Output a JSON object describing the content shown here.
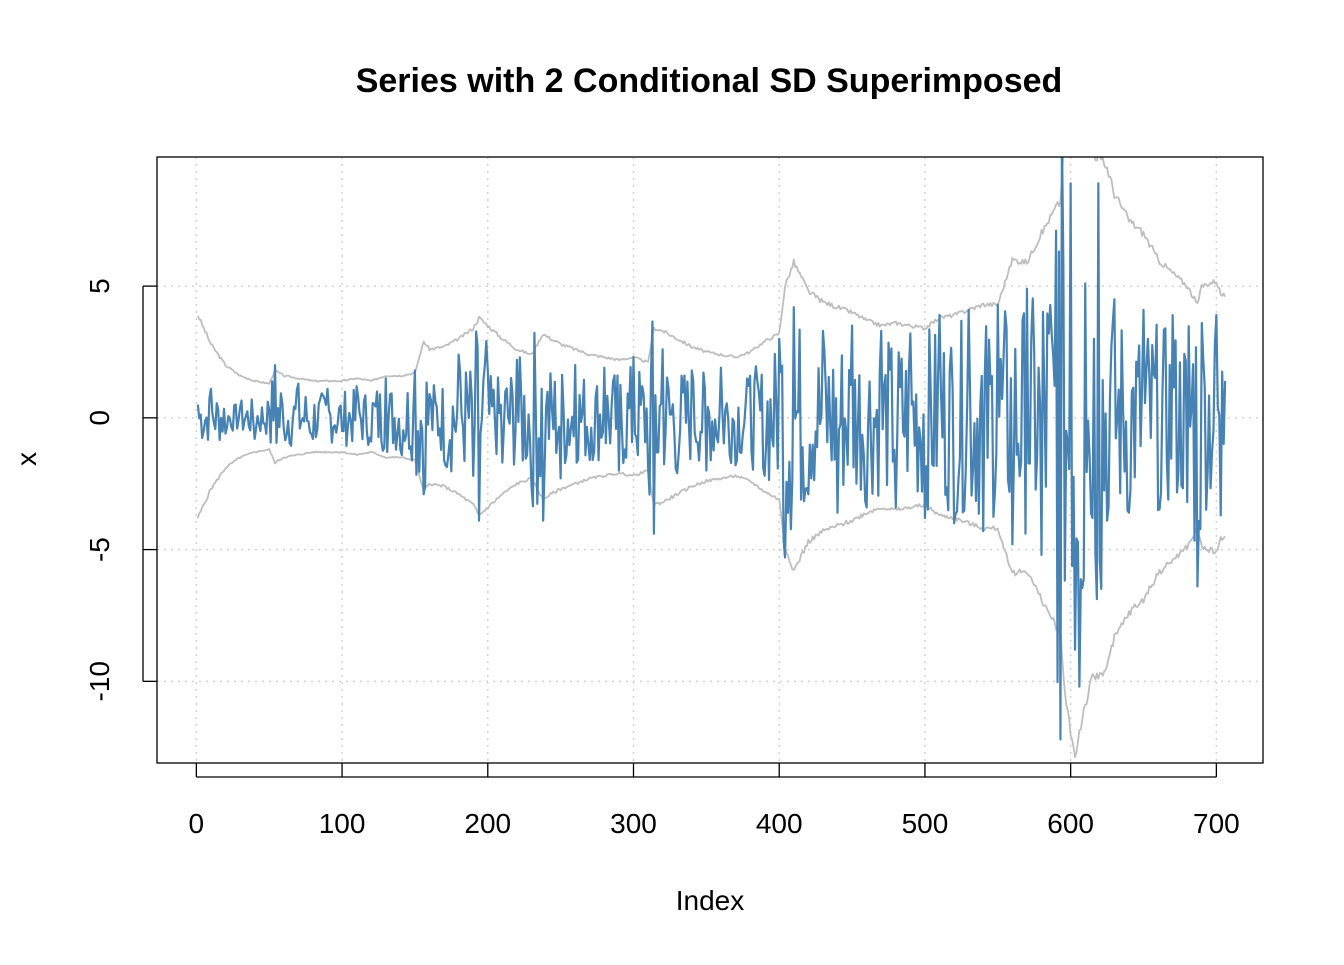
{
  "chart_data": {
    "type": "line",
    "title": "Series with 2 Conditional SD Superimposed",
    "xlabel": "Index",
    "ylabel": "x",
    "xlim": [
      -27,
      732
    ],
    "ylim": [
      -13.1,
      9.9
    ],
    "x_ticks": [
      0,
      100,
      200,
      300,
      400,
      500,
      600,
      700
    ],
    "y_ticks": [
      -10,
      -5,
      0,
      5
    ],
    "grid": true,
    "n": 706,
    "colors": {
      "series": "#4682b4",
      "bands": "#bebebe",
      "grid": "#d3d3d3",
      "axis": "#000000"
    },
    "series": [
      {
        "role": "series",
        "x": [
          1,
          10,
          20,
          30,
          40,
          50,
          54,
          60,
          70,
          80,
          90,
          100,
          110,
          120,
          130,
          140,
          150,
          156,
          160,
          170,
          180,
          190,
          194,
          200,
          210,
          220,
          230,
          238,
          240,
          250,
          260,
          270,
          280,
          290,
          300,
          310,
          314,
          320,
          330,
          340,
          350,
          360,
          370,
          380,
          390,
          400,
          404,
          410,
          420,
          430,
          440,
          450,
          460,
          470,
          480,
          490,
          500,
          510,
          520,
          530,
          540,
          550,
          560,
          570,
          580,
          590,
          593,
          595,
          600,
          603,
          606,
          610,
          615,
          619,
          625,
          630,
          640,
          650,
          660,
          670,
          680,
          687,
          690,
          700,
          703,
          706
        ],
        "values": [
          0.5,
          1.1,
          -0.6,
          0.4,
          -0.8,
          0.3,
          2.0,
          -0.4,
          1.3,
          -0.8,
          1.1,
          -0.5,
          1.2,
          -0.9,
          1.5,
          -1.2,
          1.8,
          -2.9,
          0.9,
          -1.6,
          2.4,
          -2.2,
          -3.9,
          1.8,
          -1.7,
          2.2,
          -2.6,
          -3.9,
          0.4,
          -2.3,
          2.0,
          -1.6,
          1.9,
          -2.0,
          2.3,
          -1.8,
          -4.4,
          2.6,
          -2.1,
          1.8,
          -2.0,
          1.9,
          -1.8,
          1.6,
          -2.2,
          3.0,
          -5.3,
          4.2,
          -2.9,
          3.3,
          -3.6,
          3.5,
          -3.4,
          3.3,
          -3.4,
          3.2,
          -3.8,
          3.9,
          -4.0,
          4.1,
          -4.3,
          4.3,
          -4.8,
          4.9,
          -5.2,
          7.1,
          -12.2,
          5.8,
          8.9,
          -8.8,
          -10.2,
          5.1,
          -3.8,
          8.9,
          -3.9,
          4.5,
          -3.6,
          4.1,
          -3.5,
          3.9,
          -3.2,
          -6.4,
          3.6,
          3.9,
          -3.7,
          1.4
        ]
      },
      {
        "role": "upper-band",
        "x": [
          1,
          10,
          20,
          30,
          40,
          50,
          54,
          60,
          70,
          80,
          90,
          100,
          110,
          120,
          130,
          140,
          150,
          156,
          160,
          170,
          180,
          190,
          194,
          200,
          210,
          220,
          230,
          238,
          240,
          250,
          260,
          270,
          280,
          290,
          300,
          310,
          314,
          320,
          330,
          340,
          350,
          360,
          370,
          380,
          390,
          400,
          404,
          410,
          420,
          430,
          440,
          450,
          460,
          470,
          480,
          490,
          500,
          510,
          520,
          530,
          540,
          550,
          560,
          570,
          580,
          590,
          593,
          595,
          600,
          603,
          606,
          610,
          615,
          619,
          625,
          630,
          640,
          650,
          660,
          670,
          680,
          687,
          690,
          700,
          703,
          706
        ],
        "values": [
          3.9,
          2.8,
          2.0,
          1.6,
          1.4,
          1.3,
          1.8,
          1.6,
          1.5,
          1.4,
          1.4,
          1.4,
          1.5,
          1.4,
          1.6,
          1.6,
          1.7,
          2.9,
          2.6,
          2.7,
          3.0,
          3.4,
          3.8,
          3.5,
          3.0,
          2.6,
          2.4,
          3.2,
          3.1,
          2.8,
          2.6,
          2.4,
          2.3,
          2.2,
          2.3,
          2.1,
          3.4,
          3.3,
          3.0,
          2.7,
          2.5,
          2.4,
          2.3,
          2.5,
          2.9,
          3.2,
          5.0,
          5.9,
          4.8,
          4.4,
          4.2,
          4.0,
          3.7,
          3.5,
          3.6,
          3.5,
          3.4,
          3.8,
          3.9,
          4.1,
          4.3,
          4.3,
          6.0,
          5.9,
          7.0,
          8.0,
          8.2,
          10.0,
          12.0,
          13.0,
          12.0,
          11.0,
          10.0,
          9.9,
          9.5,
          8.5,
          7.5,
          7.0,
          6.0,
          5.5,
          5.0,
          4.3,
          5.0,
          5.2,
          4.7,
          4.6
        ]
      },
      {
        "role": "lower-band",
        "x": [
          1,
          10,
          20,
          30,
          40,
          50,
          54,
          60,
          70,
          80,
          90,
          100,
          110,
          120,
          130,
          140,
          150,
          156,
          160,
          170,
          180,
          190,
          194,
          200,
          210,
          220,
          230,
          238,
          240,
          250,
          260,
          270,
          280,
          290,
          300,
          310,
          314,
          320,
          330,
          340,
          350,
          360,
          370,
          380,
          390,
          400,
          404,
          410,
          420,
          430,
          440,
          450,
          460,
          470,
          480,
          490,
          500,
          510,
          520,
          530,
          540,
          550,
          560,
          570,
          580,
          590,
          593,
          595,
          600,
          603,
          606,
          610,
          615,
          619,
          625,
          630,
          640,
          650,
          660,
          670,
          680,
          687,
          690,
          700,
          703,
          706
        ],
        "values": [
          -3.8,
          -2.7,
          -1.9,
          -1.5,
          -1.3,
          -1.2,
          -1.7,
          -1.5,
          -1.4,
          -1.3,
          -1.3,
          -1.3,
          -1.4,
          -1.3,
          -1.5,
          -1.5,
          -1.6,
          -2.8,
          -2.5,
          -2.6,
          -2.9,
          -3.3,
          -3.7,
          -3.4,
          -2.9,
          -2.5,
          -2.3,
          -3.1,
          -3.0,
          -2.7,
          -2.5,
          -2.3,
          -2.2,
          -2.1,
          -2.2,
          -2.0,
          -3.3,
          -3.2,
          -2.9,
          -2.6,
          -2.4,
          -2.3,
          -2.2,
          -2.4,
          -2.8,
          -3.1,
          -4.9,
          -5.8,
          -4.7,
          -4.3,
          -4.1,
          -3.9,
          -3.6,
          -3.4,
          -3.5,
          -3.4,
          -3.3,
          -3.7,
          -3.8,
          -4.0,
          -4.2,
          -4.2,
          -5.9,
          -5.8,
          -6.9,
          -7.9,
          -8.1,
          -9.9,
          -11.9,
          -12.9,
          -11.9,
          -10.9,
          -9.9,
          -9.8,
          -9.4,
          -8.4,
          -7.4,
          -6.9,
          -5.9,
          -5.4,
          -4.9,
          -4.2,
          -4.9,
          -5.1,
          -4.6,
          -4.5
        ]
      }
    ]
  }
}
